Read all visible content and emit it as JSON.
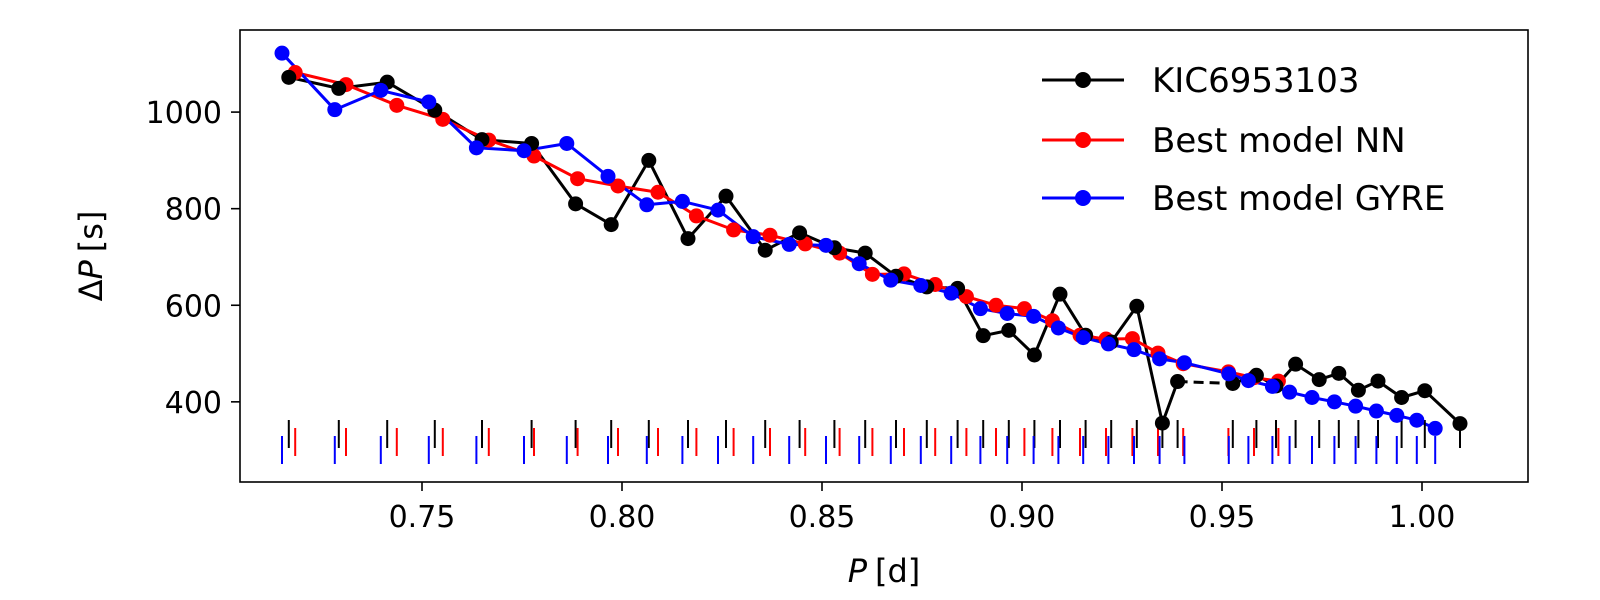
{
  "chart_data": {
    "type": "line",
    "xlabel": {
      "italic": "P",
      "unit": "[d]"
    },
    "ylabel": {
      "prefix": "Δ",
      "italic": "P",
      "unit": "[s]"
    },
    "xlim": [
      0.7045,
      1.0265
    ],
    "ylim": [
      234,
      1170
    ],
    "xticks": [
      0.75,
      0.8,
      0.85,
      0.9,
      0.95,
      1.0
    ],
    "xtick_labels": [
      "0.75",
      "0.80",
      "0.85",
      "0.90",
      "0.95",
      "1.00"
    ],
    "yticks": [
      400,
      600,
      800,
      1000
    ],
    "ytick_labels": [
      "400",
      "600",
      "800",
      "1000"
    ],
    "legend": {
      "position": "top-right"
    },
    "series": [
      {
        "name": "KIC6953103",
        "color": "#000000",
        "x": [
          0.7167,
          0.7292,
          0.7413,
          0.7532,
          0.765,
          0.7774,
          0.7884,
          0.7973,
          0.8067,
          0.8165,
          0.826,
          0.8358,
          0.8444,
          0.8531,
          0.8608,
          0.8685,
          0.8762,
          0.8839,
          0.8903,
          0.8967,
          0.9031,
          0.9095,
          0.9159,
          0.9223,
          0.9287,
          0.9351,
          0.9389
        ],
        "y": [
          1072,
          1049,
          1062,
          1004,
          943,
          935,
          810,
          767,
          900,
          738,
          826,
          714,
          750,
          719,
          708,
          660,
          638,
          635,
          537,
          548,
          497,
          623,
          538,
          524,
          598,
          356,
          442
        ],
        "x2": [
          0.9527,
          0.9586,
          0.9635,
          0.9684,
          0.9743,
          0.9792,
          0.9841,
          0.989,
          0.9949,
          1.0007,
          1.0095
        ],
        "y2": [
          438,
          455,
          433,
          478,
          446,
          459,
          424,
          443,
          409,
          423,
          355
        ],
        "ticks_x": [
          0.7167,
          0.7292,
          0.7413,
          0.7532,
          0.765,
          0.7774,
          0.7884,
          0.7973,
          0.8067,
          0.8165,
          0.826,
          0.8358,
          0.8444,
          0.8531,
          0.8608,
          0.8685,
          0.8762,
          0.8839,
          0.8903,
          0.8967,
          0.9031,
          0.9095,
          0.9159,
          0.9223,
          0.9287,
          0.9351,
          0.9389,
          0.9527,
          0.9586,
          0.9635,
          0.9684,
          0.9743,
          0.9792,
          0.9841,
          0.989,
          0.9949,
          1.0007,
          1.0095
        ]
      },
      {
        "name": "Best model NN",
        "color": "#ff0000",
        "x": [
          0.7183,
          0.731,
          0.7437,
          0.7552,
          0.7667,
          0.778,
          0.7889,
          0.799,
          0.809,
          0.8186,
          0.8279,
          0.837,
          0.8458,
          0.8544,
          0.8626,
          0.8705,
          0.8783,
          0.8861,
          0.8935,
          0.9006,
          0.9076,
          0.9145,
          0.921,
          0.9276,
          0.934,
          0.9403,
          0.9516,
          0.958,
          0.9641
        ],
        "y": [
          1082,
          1057,
          1014,
          985,
          942,
          909,
          862,
          847,
          834,
          785,
          756,
          745,
          727,
          708,
          664,
          665,
          643,
          618,
          600,
          593,
          568,
          538,
          530,
          531,
          501,
          479,
          462,
          450,
          443
        ]
      },
      {
        "name": "Best model GYRE",
        "color": "#0000ff",
        "x": [
          0.715,
          0.7282,
          0.7397,
          0.7517,
          0.7636,
          0.7755,
          0.7862,
          0.7965,
          0.8062,
          0.8151,
          0.824,
          0.8328,
          0.8418,
          0.851,
          0.8593,
          0.8672,
          0.8747,
          0.8823,
          0.8896,
          0.8963,
          0.9029,
          0.9091,
          0.9153,
          0.9216,
          0.928,
          0.9344,
          0.9406,
          0.9517,
          0.9566,
          0.9626,
          0.9669,
          0.9725,
          0.9781,
          0.9834,
          0.9886,
          0.9937,
          0.9987,
          1.0033
        ],
        "y": [
          1122,
          1005,
          1045,
          1021,
          926,
          920,
          935,
          867,
          808,
          815,
          797,
          742,
          726,
          724,
          686,
          652,
          641,
          625,
          593,
          583,
          577,
          553,
          533,
          520,
          508,
          489,
          481,
          458,
          444,
          432,
          420,
          409,
          400,
          391,
          381,
          372,
          362,
          345
        ]
      }
    ]
  }
}
